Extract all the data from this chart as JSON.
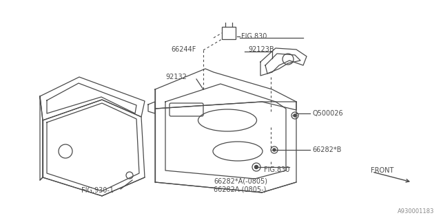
{
  "bg_color": "#ffffff",
  "line_color": "#4a4a4a",
  "text_color": "#4a4a4a",
  "watermark": "A930001183",
  "fig830_top_label": "FIG.830",
  "label_66244F": "66244F",
  "label_92123B": "92123B",
  "label_92132": "92132",
  "label_Q500026": "Q500026",
  "label_66282B": "66282*B",
  "label_fig830_bot": "FIG.830",
  "label_66282A1": "66282*A(-0805)",
  "label_66282A2": "66282A (0805-)",
  "label_fig930": "FIG.930-1",
  "label_front": "FRONT"
}
